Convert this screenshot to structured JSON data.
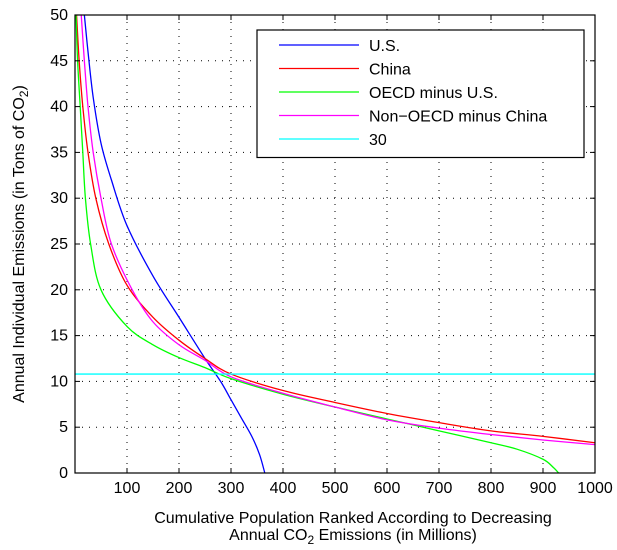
{
  "chart_data": {
    "type": "line",
    "xlabel_line1": "Cumulative Population Ranked According to Decreasing",
    "xlabel_line2_pre": "Annual  CO",
    "xlabel_line2_sub": "2",
    "xlabel_line2_post": " Emissions (in Millions)",
    "ylabel_pre": "Annual Individual Emissions (in Tons of CO",
    "ylabel_sub": "2",
    "ylabel_post": ")",
    "xlim": [
      0,
      1000
    ],
    "ylim": [
      0,
      50
    ],
    "x_ticks": [
      100,
      200,
      300,
      400,
      500,
      600,
      700,
      800,
      900,
      1000
    ],
    "y_ticks": [
      0,
      5,
      10,
      15,
      20,
      25,
      30,
      35,
      40,
      45,
      50
    ],
    "grid": true,
    "legend_position": "top-right",
    "series": [
      {
        "name": "U.S.",
        "color": "#0000ff",
        "points": [
          [
            18,
            50
          ],
          [
            25,
            46
          ],
          [
            35,
            41
          ],
          [
            50,
            36
          ],
          [
            70,
            32
          ],
          [
            100,
            27
          ],
          [
            150,
            21.5
          ],
          [
            200,
            17
          ],
          [
            250,
            12.5
          ],
          [
            280,
            10
          ],
          [
            300,
            8
          ],
          [
            320,
            6
          ],
          [
            340,
            4
          ],
          [
            355,
            2
          ],
          [
            365,
            0
          ]
        ]
      },
      {
        "name": "China",
        "color": "#ff0000",
        "points": [
          [
            3,
            50
          ],
          [
            8,
            45
          ],
          [
            15,
            40
          ],
          [
            25,
            35
          ],
          [
            40,
            30
          ],
          [
            65,
            25
          ],
          [
            100,
            20.5
          ],
          [
            150,
            17
          ],
          [
            200,
            14.5
          ],
          [
            250,
            12.5
          ],
          [
            300,
            10.8
          ],
          [
            400,
            9
          ],
          [
            500,
            7.7
          ],
          [
            600,
            6.5
          ],
          [
            700,
            5.5
          ],
          [
            800,
            4.6
          ],
          [
            900,
            4
          ],
          [
            1000,
            3.3
          ]
        ]
      },
      {
        "name": "OECD minus U.S.",
        "color": "#00ff00",
        "points": [
          [
            2,
            50
          ],
          [
            5,
            45
          ],
          [
            10,
            40
          ],
          [
            15,
            35
          ],
          [
            20,
            30
          ],
          [
            30,
            25
          ],
          [
            50,
            20
          ],
          [
            100,
            16
          ],
          [
            150,
            14
          ],
          [
            200,
            12.6
          ],
          [
            250,
            11.5
          ],
          [
            300,
            10.3
          ],
          [
            400,
            8.6
          ],
          [
            500,
            7.2
          ],
          [
            600,
            5.9
          ],
          [
            700,
            4.6
          ],
          [
            800,
            3.3
          ],
          [
            850,
            2.6
          ],
          [
            900,
            1.5
          ],
          [
            920,
            0.6
          ],
          [
            930,
            0
          ]
        ]
      },
      {
        "name": "Non−OECD minus China",
        "color": "#ff00ff",
        "points": [
          [
            12,
            50
          ],
          [
            18,
            45
          ],
          [
            25,
            40
          ],
          [
            35,
            35
          ],
          [
            50,
            30
          ],
          [
            70,
            25
          ],
          [
            110,
            20
          ],
          [
            150,
            16.5
          ],
          [
            200,
            14
          ],
          [
            250,
            12.3
          ],
          [
            300,
            10.5
          ],
          [
            400,
            8.7
          ],
          [
            500,
            7.2
          ],
          [
            600,
            5.8
          ],
          [
            700,
            4.9
          ],
          [
            800,
            4.2
          ],
          [
            900,
            3.6
          ],
          [
            1000,
            3.1
          ]
        ]
      },
      {
        "name": "30",
        "color": "#00ffff",
        "points": [
          [
            0,
            10.8
          ],
          [
            1000,
            10.8
          ]
        ]
      }
    ]
  }
}
